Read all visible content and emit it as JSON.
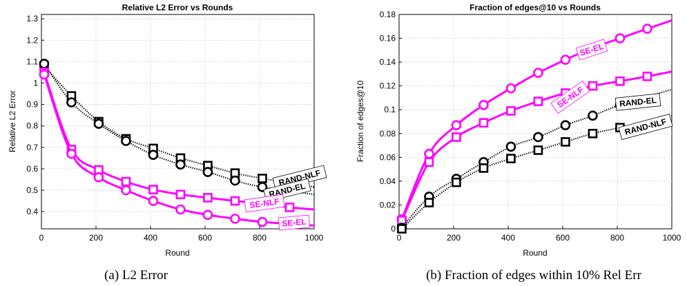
{
  "chart_data": [
    {
      "type": "line",
      "title": "Relative L2 Error vs Rounds",
      "xlabel": "Round",
      "ylabel": "Relative L2 Error",
      "xlim": [
        0,
        1000
      ],
      "ylim": [
        0.32,
        1.32
      ],
      "xticks": [
        0,
        200,
        400,
        600,
        800,
        1000
      ],
      "yticks": [
        0.4,
        0.5,
        0.6,
        0.7,
        0.8,
        0.9,
        1,
        1.1,
        1.2,
        1.3
      ],
      "grid": true,
      "caption": "(a)  L2 Error",
      "series": [
        {
          "name": "RAND-NLF",
          "color": "#000000",
          "style": "dotted",
          "marker": "square",
          "x": [
            10,
            110,
            210,
            310,
            410,
            510,
            610,
            710,
            810,
            1000
          ],
          "y": [
            1.08,
            0.94,
            0.82,
            0.74,
            0.695,
            0.65,
            0.615,
            0.58,
            0.555,
            0.515
          ]
        },
        {
          "name": "RAND-EL",
          "color": "#000000",
          "style": "dotted",
          "marker": "circle",
          "x": [
            10,
            110,
            210,
            310,
            410,
            510,
            610,
            710,
            810,
            1000
          ],
          "y": [
            1.09,
            0.91,
            0.81,
            0.73,
            0.665,
            0.62,
            0.585,
            0.545,
            0.515,
            0.48
          ]
        },
        {
          "name": "SE-NLF",
          "color": "#ff00ff",
          "style": "solid",
          "marker": "square",
          "x": [
            10,
            110,
            210,
            310,
            410,
            510,
            610,
            710,
            810,
            910,
            1000
          ],
          "y": [
            1.05,
            0.69,
            0.595,
            0.54,
            0.503,
            0.48,
            0.465,
            0.45,
            0.437,
            0.42,
            0.41
          ]
        },
        {
          "name": "SE-EL",
          "color": "#ff00ff",
          "style": "solid",
          "marker": "circle",
          "x": [
            10,
            110,
            210,
            310,
            410,
            510,
            610,
            710,
            810,
            1000
          ],
          "y": [
            1.04,
            0.67,
            0.56,
            0.5,
            0.45,
            0.41,
            0.385,
            0.367,
            0.352,
            0.335
          ]
        }
      ]
    },
    {
      "type": "line",
      "title": "Fraction of edges@10 vs Rounds",
      "xlabel": "Round",
      "ylabel": "Fraction of edges@10",
      "xlim": [
        0,
        1000
      ],
      "ylim": [
        0,
        0.18
      ],
      "xticks": [
        0,
        200,
        400,
        600,
        800,
        1000
      ],
      "yticks": [
        0,
        0.02,
        0.04,
        0.06,
        0.08,
        0.1,
        0.12,
        0.14,
        0.16,
        0.18
      ],
      "ytick_labels": [
        "0",
        "0.02",
        "0.04",
        "0.06",
        "0.08",
        "0.1",
        "0.12",
        "0.14",
        "0.16",
        "0.18"
      ],
      "grid": true,
      "caption": "(b)  Fraction of edges within 10% Rel Err",
      "series": [
        {
          "name": "SE-EL",
          "color": "#ff00ff",
          "style": "solid",
          "marker": "circle",
          "x": [
            10,
            110,
            210,
            310,
            410,
            510,
            610,
            710,
            810,
            910,
            1000
          ],
          "y": [
            0.008,
            0.063,
            0.087,
            0.104,
            0.118,
            0.131,
            0.142,
            0.152,
            0.16,
            0.168,
            0.175
          ]
        },
        {
          "name": "SE-NLF",
          "color": "#ff00ff",
          "style": "solid",
          "marker": "square",
          "x": [
            10,
            110,
            210,
            310,
            410,
            510,
            610,
            710,
            810,
            910,
            1000
          ],
          "y": [
            0.007,
            0.056,
            0.077,
            0.089,
            0.099,
            0.107,
            0.114,
            0.12,
            0.124,
            0.128,
            0.132
          ]
        },
        {
          "name": "RAND-EL",
          "color": "#000000",
          "style": "dotted",
          "marker": "circle",
          "x": [
            10,
            110,
            210,
            310,
            410,
            510,
            610,
            710,
            810,
            1000
          ],
          "y": [
            0.001,
            0.027,
            0.042,
            0.056,
            0.069,
            0.077,
            0.087,
            0.095,
            0.104,
            0.117
          ]
        },
        {
          "name": "RAND-NLF",
          "color": "#000000",
          "style": "dotted",
          "marker": "square",
          "x": [
            10,
            110,
            210,
            310,
            410,
            510,
            610,
            710,
            810,
            1000
          ],
          "y": [
            0.0,
            0.022,
            0.039,
            0.051,
            0.059,
            0.066,
            0.073,
            0.08,
            0.085,
            0.095
          ]
        }
      ]
    }
  ]
}
